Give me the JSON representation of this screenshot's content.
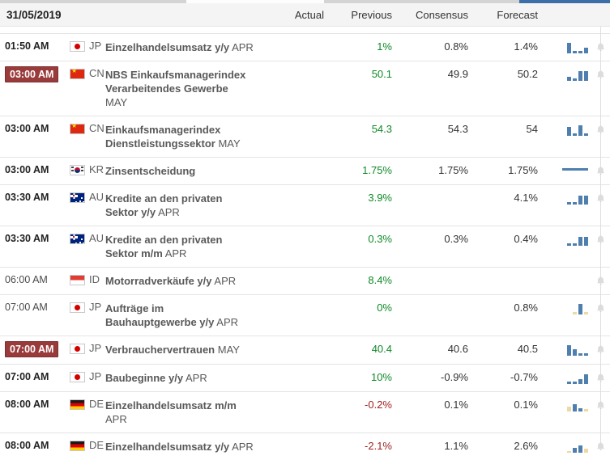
{
  "header": {
    "date": "31/05/2019",
    "columns": [
      "Actual",
      "Previous",
      "Consensus",
      "Forecast"
    ]
  },
  "colors": {
    "positive_value": "#0f8a27",
    "negative_value": "#9e1f1f",
    "time_badge_bg": "#9a3b3b",
    "chart_bar_blue": "#4e7fae",
    "chart_bar_tan": "#ecd9a4",
    "top_strip_blue": "#3c6fa8"
  },
  "icons": {
    "bell": "alert-bell-icon"
  },
  "rows": [
    {
      "time": "01:50 AM",
      "time_style": "bold",
      "country": "JP",
      "flag": "jp",
      "title": "Einzelhandelsumsatz y/y",
      "period": "APR",
      "period_newline": false,
      "actual": "",
      "previous": "1%",
      "previous_color": "green",
      "consensus": "0.8%",
      "forecast": "1.4%",
      "chart": {
        "type": "bars",
        "bars": [
          {
            "h": 13,
            "c": "blue"
          },
          {
            "h": 3,
            "c": "blue"
          },
          {
            "h": 3,
            "c": "blue"
          },
          {
            "h": 7,
            "c": "blue"
          }
        ]
      }
    },
    {
      "time": "03:00 AM",
      "time_style": "badge",
      "country": "CN",
      "flag": "cn",
      "title": "NBS Einkaufsmanagerindex\nVerarbeitendes Gewerbe",
      "period": "MAY",
      "period_newline": true,
      "actual": "",
      "previous": "50.1",
      "previous_color": "green",
      "consensus": "49.9",
      "forecast": "50.2",
      "chart": {
        "type": "bars",
        "bars": [
          {
            "h": 5,
            "c": "blue"
          },
          {
            "h": 3,
            "c": "blue"
          },
          {
            "h": 12,
            "c": "blue"
          },
          {
            "h": 12,
            "c": "blue"
          }
        ]
      }
    },
    {
      "time": "03:00 AM",
      "time_style": "bold",
      "country": "CN",
      "flag": "cn",
      "title": "Einkaufsmanagerindex\nDienstleistungssektor",
      "period": "MAY",
      "period_newline": false,
      "actual": "",
      "previous": "54.3",
      "previous_color": "green",
      "consensus": "54.3",
      "forecast": "54",
      "chart": {
        "type": "bars",
        "bars": [
          {
            "h": 11,
            "c": "blue"
          },
          {
            "h": 3,
            "c": "blue"
          },
          {
            "h": 13,
            "c": "blue"
          },
          {
            "h": 3,
            "c": "blue"
          }
        ]
      }
    },
    {
      "time": "03:00 AM",
      "time_style": "bold",
      "country": "KR",
      "flag": "kr",
      "title": "Zinsentscheidung",
      "period": "",
      "period_newline": false,
      "actual": "",
      "previous": "1.75%",
      "previous_color": "green",
      "consensus": "1.75%",
      "forecast": "1.75%",
      "chart": {
        "type": "line"
      }
    },
    {
      "time": "03:30 AM",
      "time_style": "bold",
      "country": "AU",
      "flag": "au",
      "title": "Kredite an den privaten\nSektor y/y",
      "period": "APR",
      "period_newline": false,
      "actual": "",
      "previous": "3.9%",
      "previous_color": "green",
      "consensus": "",
      "forecast": "4.1%",
      "chart": {
        "type": "bars",
        "bars": [
          {
            "h": 3,
            "c": "blue"
          },
          {
            "h": 3,
            "c": "blue"
          },
          {
            "h": 11,
            "c": "blue"
          },
          {
            "h": 11,
            "c": "blue"
          }
        ]
      }
    },
    {
      "time": "03:30 AM",
      "time_style": "bold",
      "country": "AU",
      "flag": "au",
      "title": "Kredite an den privaten\nSektor m/m",
      "period": "APR",
      "period_newline": false,
      "actual": "",
      "previous": "0.3%",
      "previous_color": "green",
      "consensus": "0.3%",
      "forecast": "0.4%",
      "chart": {
        "type": "bars",
        "bars": [
          {
            "h": 3,
            "c": "blue"
          },
          {
            "h": 3,
            "c": "blue"
          },
          {
            "h": 11,
            "c": "blue"
          },
          {
            "h": 11,
            "c": "blue"
          }
        ]
      }
    },
    {
      "time": "06:00 AM",
      "time_style": "normal",
      "country": "ID",
      "flag": "id",
      "title": "Motorradverkäufe y/y",
      "period": "APR",
      "period_newline": false,
      "actual": "",
      "previous": "8.4%",
      "previous_color": "green",
      "consensus": "",
      "forecast": "",
      "chart": null
    },
    {
      "time": "07:00 AM",
      "time_style": "normal",
      "country": "JP",
      "flag": "jp",
      "title": "Aufträge im\nBauhauptgewerbe y/y",
      "period": "APR",
      "period_newline": false,
      "actual": "",
      "previous": "0%",
      "previous_color": "green",
      "consensus": "",
      "forecast": "0.8%",
      "chart": {
        "type": "bars",
        "bars": [
          {
            "h": 3,
            "c": "tan"
          },
          {
            "h": 13,
            "c": "blue"
          },
          {
            "h": 3,
            "c": "tan"
          }
        ]
      }
    },
    {
      "time": "07:00 AM",
      "time_style": "badge",
      "country": "JP",
      "flag": "jp",
      "title": "Verbrauchervertrauen",
      "period": "MAY",
      "period_newline": false,
      "actual": "",
      "previous": "40.4",
      "previous_color": "green",
      "consensus": "40.6",
      "forecast": "40.5",
      "chart": {
        "type": "bars",
        "bars": [
          {
            "h": 13,
            "c": "blue"
          },
          {
            "h": 8,
            "c": "blue"
          },
          {
            "h": 3,
            "c": "blue"
          },
          {
            "h": 3,
            "c": "blue"
          }
        ]
      }
    },
    {
      "time": "07:00 AM",
      "time_style": "bold",
      "country": "JP",
      "flag": "jp",
      "title": "Baubeginne y/y",
      "period": "APR",
      "period_newline": false,
      "actual": "",
      "previous": "10%",
      "previous_color": "green",
      "consensus": "-0.9%",
      "forecast": "-0.7%",
      "chart": {
        "type": "bars",
        "bars": [
          {
            "h": 3,
            "c": "blue"
          },
          {
            "h": 3,
            "c": "blue"
          },
          {
            "h": 6,
            "c": "blue"
          },
          {
            "h": 12,
            "c": "blue"
          }
        ]
      }
    },
    {
      "time": "08:00 AM",
      "time_style": "bold",
      "country": "DE",
      "flag": "de",
      "title": "Einzelhandelsumsatz m/m",
      "period": "APR",
      "period_newline": true,
      "actual": "",
      "previous": "-0.2%",
      "previous_color": "red",
      "consensus": "0.1%",
      "forecast": "0.1%",
      "chart": {
        "type": "bars",
        "bars": [
          {
            "h": 6,
            "c": "tan"
          },
          {
            "h": 9,
            "c": "blue"
          },
          {
            "h": 4,
            "c": "blue"
          },
          {
            "h": 3,
            "c": "tan"
          }
        ]
      }
    },
    {
      "time": "08:00 AM",
      "time_style": "bold",
      "country": "DE",
      "flag": "de",
      "title": "Einzelhandelsumsatz y/y",
      "period": "APR",
      "period_newline": false,
      "actual": "",
      "previous": "-2.1%",
      "previous_color": "red",
      "consensus": "1.1%",
      "forecast": "2.6%",
      "chart": {
        "type": "bars",
        "bars": [
          {
            "h": 2,
            "c": "tan"
          },
          {
            "h": 6,
            "c": "blue"
          },
          {
            "h": 9,
            "c": "blue"
          },
          {
            "h": 5,
            "c": "tan"
          }
        ]
      }
    }
  ]
}
